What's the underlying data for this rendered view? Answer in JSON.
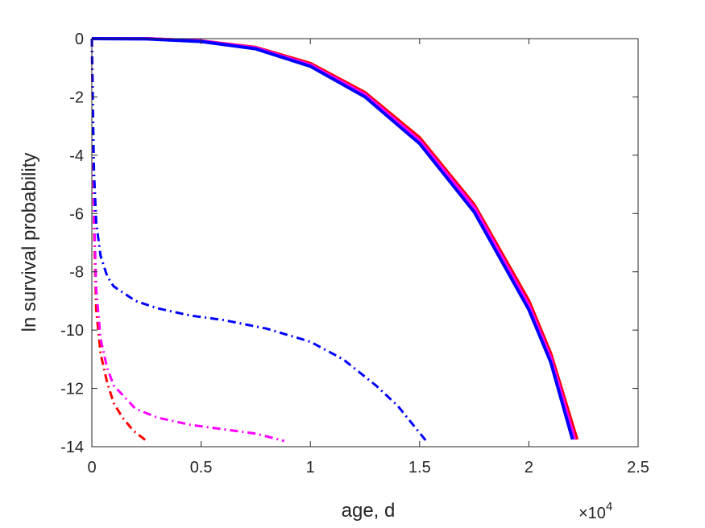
{
  "chart_data": {
    "type": "line",
    "title": "",
    "xlabel": "age, d",
    "ylabel": "ln survival probability",
    "x_exponent_label": "×10",
    "x_exponent_power": "4",
    "xlim": [
      0,
      2.5
    ],
    "ylim": [
      -14,
      0
    ],
    "x_multiplier": 10000,
    "xticks": [
      0,
      0.5,
      1,
      1.5,
      2,
      2.5
    ],
    "xtick_labels": [
      "0",
      "0.5",
      "1",
      "1.5",
      "2",
      "2.5"
    ],
    "yticks": [
      0,
      -2,
      -4,
      -6,
      -8,
      -10,
      -12,
      -14
    ],
    "ytick_labels": [
      "0",
      "-2",
      "-4",
      "-6",
      "-8",
      "-10",
      "-12",
      "-14"
    ],
    "grid": false,
    "series": [
      {
        "color": "#ff0000",
        "style": "solid",
        "points": [
          [
            0,
            0
          ],
          [
            0.25,
            0
          ],
          [
            0.5,
            -0.08
          ],
          [
            0.75,
            -0.3
          ],
          [
            1.0,
            -0.85
          ],
          [
            1.25,
            -1.85
          ],
          [
            1.5,
            -3.4
          ],
          [
            1.75,
            -5.7
          ],
          [
            2.0,
            -9.0
          ],
          [
            2.1,
            -10.8
          ],
          [
            2.22,
            -13.75
          ]
        ]
      },
      {
        "color": "#ff00ff",
        "style": "solid",
        "points": [
          [
            0,
            0
          ],
          [
            0.25,
            0
          ],
          [
            0.5,
            -0.08
          ],
          [
            0.75,
            -0.32
          ],
          [
            1.0,
            -0.9
          ],
          [
            1.25,
            -1.92
          ],
          [
            1.5,
            -3.5
          ],
          [
            1.75,
            -5.8
          ],
          [
            2.0,
            -9.15
          ],
          [
            2.1,
            -10.95
          ],
          [
            2.21,
            -13.75
          ]
        ]
      },
      {
        "color": "#0000ff",
        "style": "solid",
        "points": [
          [
            0,
            0
          ],
          [
            0.25,
            -0.01
          ],
          [
            0.5,
            -0.1
          ],
          [
            0.75,
            -0.35
          ],
          [
            1.0,
            -0.95
          ],
          [
            1.25,
            -2.0
          ],
          [
            1.5,
            -3.6
          ],
          [
            1.75,
            -5.95
          ],
          [
            2.0,
            -9.3
          ],
          [
            2.1,
            -11.1
          ],
          [
            2.2,
            -13.75
          ]
        ]
      },
      {
        "color": "#ff0000",
        "style": "dashdot",
        "points": [
          [
            0,
            0
          ],
          [
            0.005,
            -3.0
          ],
          [
            0.01,
            -6.5
          ],
          [
            0.02,
            -9.3
          ],
          [
            0.04,
            -10.8
          ],
          [
            0.07,
            -11.8
          ],
          [
            0.1,
            -12.5
          ],
          [
            0.14,
            -13.0
          ],
          [
            0.19,
            -13.45
          ],
          [
            0.25,
            -13.8
          ]
        ]
      },
      {
        "color": "#ff00ff",
        "style": "dashdot",
        "points": [
          [
            0,
            0
          ],
          [
            0.005,
            -3.0
          ],
          [
            0.01,
            -6.0
          ],
          [
            0.02,
            -8.6
          ],
          [
            0.04,
            -10.3
          ],
          [
            0.07,
            -11.3
          ],
          [
            0.1,
            -11.9
          ],
          [
            0.2,
            -12.7
          ],
          [
            0.3,
            -13.0
          ],
          [
            0.45,
            -13.25
          ],
          [
            0.6,
            -13.4
          ],
          [
            0.75,
            -13.55
          ],
          [
            0.88,
            -13.8
          ]
        ]
      },
      {
        "color": "#0000ff",
        "style": "dashdot",
        "points": [
          [
            0,
            0
          ],
          [
            0.005,
            -2.5
          ],
          [
            0.01,
            -4.6
          ],
          [
            0.02,
            -6.3
          ],
          [
            0.04,
            -7.45
          ],
          [
            0.07,
            -8.15
          ],
          [
            0.1,
            -8.5
          ],
          [
            0.2,
            -9.0
          ],
          [
            0.3,
            -9.25
          ],
          [
            0.45,
            -9.5
          ],
          [
            0.6,
            -9.65
          ],
          [
            0.8,
            -9.95
          ],
          [
            1.0,
            -10.4
          ],
          [
            1.15,
            -11.0
          ],
          [
            1.3,
            -11.9
          ],
          [
            1.4,
            -12.6
          ],
          [
            1.53,
            -13.8
          ]
        ]
      }
    ]
  }
}
